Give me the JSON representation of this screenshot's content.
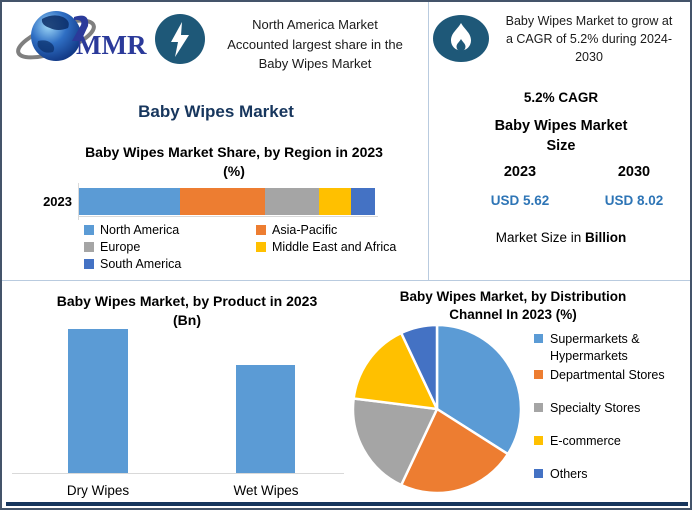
{
  "header": {
    "logo_text": "MMR",
    "logo_icon": "globe-icon",
    "left_badge_icon": "lightning-icon",
    "right_badge_icon": "flame-icon",
    "left_callout_lines": [
      "North America Market",
      "Accounted largest share in the",
      "Baby Wipes Market"
    ],
    "right_callout_lines": [
      "Baby Wipes Market to grow at",
      "a CAGR of 5.2% during 2024-",
      "2030"
    ]
  },
  "main_title": "Baby Wipes Market",
  "size_panel": {
    "cagr": "5.2% CAGR",
    "title_lines": [
      "Baby Wipes Market",
      "Size"
    ],
    "year_left": "2023",
    "year_right": "2030",
    "value_left": "USD 5.62",
    "value_right": "USD 8.02",
    "note_prefix": "Market Size in ",
    "note_bold": "Billion"
  },
  "colors": {
    "accent_navy": "#17365d",
    "value_blue": "#2e75b6",
    "badge_blue": "#1e5878",
    "palette": [
      "#5b9bd5",
      "#ed7d31",
      "#a5a5a5",
      "#ffc000",
      "#4472c4"
    ]
  },
  "chart_data": [
    {
      "type": "bar",
      "subtype": "stacked-horizontal",
      "title": "Baby Wipes Market Share, by Region in 2023 (%)",
      "title_lines": [
        "Baby Wipes Market Share, by Region in 2023",
        "(%)"
      ],
      "categories": [
        "2023"
      ],
      "xlabel": "",
      "ylabel": "",
      "legend_position": "bottom",
      "series": [
        {
          "name": "North America",
          "value": 34,
          "color": "#5b9bd5"
        },
        {
          "name": "Asia-Pacific",
          "value": 29,
          "color": "#ed7d31"
        },
        {
          "name": "Europe",
          "value": 18,
          "color": "#a5a5a5"
        },
        {
          "name": "Middle East and Africa",
          "value": 11,
          "color": "#ffc000"
        },
        {
          "name": "South America",
          "value": 8,
          "color": "#4472c4"
        }
      ]
    },
    {
      "type": "bar",
      "title": "Baby Wipes Market, by Product in 2023 (Bn)",
      "title_lines": [
        "Baby Wipes Market, by Product in 2023",
        "(Bn)"
      ],
      "categories": [
        "Dry Wipes",
        "Wet Wipes"
      ],
      "values": [
        3.2,
        2.4
      ],
      "bar_color": "#5b9bd5",
      "xlabel": "",
      "ylabel": "",
      "grid": false,
      "axis_labels_shown": false
    },
    {
      "type": "pie",
      "title": "Baby Wipes Market, by Distribution Channel In 2023 (%)",
      "title_lines": [
        "Baby Wipes Market, by Distribution",
        "Channel In 2023 (%)"
      ],
      "legend_position": "right",
      "slices": [
        {
          "label": "Supermarkets & Hypermarkets",
          "value": 34,
          "color": "#5b9bd5"
        },
        {
          "label": "Departmental Stores",
          "value": 23,
          "color": "#ed7d31"
        },
        {
          "label": "Specialty Stores",
          "value": 20,
          "color": "#a5a5a5"
        },
        {
          "label": "E-commerce",
          "value": 16,
          "color": "#ffc000"
        },
        {
          "label": "Others",
          "value": 7,
          "color": "#4472c4"
        }
      ]
    }
  ]
}
